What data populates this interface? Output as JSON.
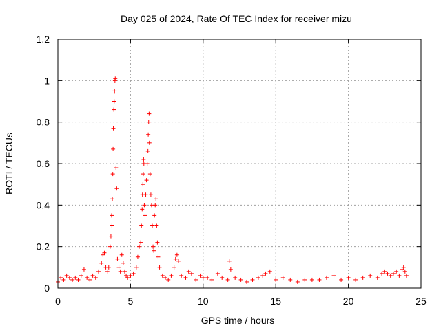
{
  "chart_data": {
    "type": "scatter",
    "title": "Day 025 of 2024, Rate Of TEC Index for receiver mizu",
    "xlabel": "GPS time / hours",
    "ylabel": "ROTI / TECUs",
    "xlim": [
      0,
      25
    ],
    "ylim": [
      0,
      1.2
    ],
    "xticks": [
      "0",
      "5",
      "10",
      "15",
      "20",
      "25"
    ],
    "yticks": [
      "0",
      "0.2",
      "0.4",
      "0.6",
      "0.8",
      "1",
      "1.2"
    ],
    "grid": true,
    "marker": "plus",
    "color": "#ff0000",
    "series": [
      {
        "x": [
          0.0,
          0.2,
          0.4,
          0.6,
          0.8,
          1.0,
          1.2,
          1.4,
          1.6,
          1.8,
          2.0,
          2.2,
          2.4,
          2.6,
          2.8,
          3.0,
          3.1,
          3.2,
          3.3,
          3.4,
          3.5,
          3.6,
          3.65,
          3.7,
          3.72,
          3.75,
          3.78,
          3.8,
          3.82,
          3.85,
          3.88,
          3.9,
          3.93,
          3.95,
          4.0,
          4.05,
          4.1,
          4.2,
          4.3,
          4.4,
          4.5,
          4.6,
          4.7,
          4.8,
          5.0,
          5.2,
          5.4,
          5.5,
          5.6,
          5.7,
          5.75,
          5.8,
          5.82,
          5.85,
          5.88,
          5.9,
          5.92,
          5.95,
          6.0,
          6.05,
          6.1,
          6.15,
          6.2,
          6.22,
          6.25,
          6.28,
          6.3,
          6.35,
          6.4,
          6.45,
          6.5,
          6.55,
          6.6,
          6.65,
          6.7,
          6.75,
          6.8,
          6.85,
          6.9,
          7.0,
          7.2,
          7.4,
          7.6,
          7.8,
          8.0,
          8.1,
          8.2,
          8.3,
          8.5,
          8.8,
          9.0,
          9.2,
          9.5,
          9.8,
          10.0,
          10.3,
          10.6,
          11.0,
          11.3,
          11.7,
          11.8,
          11.9,
          12.2,
          12.6,
          13.0,
          13.4,
          13.8,
          14.1,
          14.3,
          14.6,
          15.0,
          15.5,
          16.0,
          16.5,
          17.0,
          17.5,
          18.0,
          18.5,
          19.0,
          19.5,
          20.0,
          20.5,
          21.0,
          21.5,
          22.0,
          22.3,
          22.5,
          22.7,
          22.9,
          23.1,
          23.3,
          23.5,
          23.7,
          23.8,
          23.9,
          24.0
        ],
        "y": [
          0.03,
          0.05,
          0.04,
          0.06,
          0.05,
          0.04,
          0.05,
          0.04,
          0.06,
          0.09,
          0.05,
          0.04,
          0.06,
          0.05,
          0.08,
          0.12,
          0.16,
          0.17,
          0.1,
          0.08,
          0.1,
          0.2,
          0.25,
          0.35,
          0.3,
          0.43,
          0.55,
          0.67,
          0.77,
          0.86,
          0.9,
          0.95,
          1.0,
          1.01,
          0.58,
          0.48,
          0.14,
          0.1,
          0.08,
          0.16,
          0.12,
          0.08,
          0.06,
          0.05,
          0.06,
          0.07,
          0.1,
          0.15,
          0.2,
          0.22,
          0.3,
          0.38,
          0.45,
          0.5,
          0.55,
          0.62,
          0.6,
          0.4,
          0.35,
          0.45,
          0.52,
          0.6,
          0.66,
          0.74,
          0.8,
          0.84,
          0.7,
          0.55,
          0.45,
          0.4,
          0.3,
          0.2,
          0.18,
          0.35,
          0.4,
          0.43,
          0.3,
          0.22,
          0.15,
          0.1,
          0.06,
          0.05,
          0.04,
          0.06,
          0.1,
          0.14,
          0.16,
          0.13,
          0.06,
          0.05,
          0.08,
          0.07,
          0.04,
          0.06,
          0.05,
          0.05,
          0.04,
          0.07,
          0.05,
          0.04,
          0.13,
          0.09,
          0.05,
          0.04,
          0.03,
          0.04,
          0.05,
          0.06,
          0.07,
          0.08,
          0.04,
          0.05,
          0.04,
          0.03,
          0.04,
          0.04,
          0.04,
          0.05,
          0.06,
          0.04,
          0.05,
          0.04,
          0.05,
          0.06,
          0.05,
          0.07,
          0.08,
          0.07,
          0.06,
          0.07,
          0.08,
          0.06,
          0.09,
          0.1,
          0.08,
          0.06
        ]
      }
    ]
  }
}
